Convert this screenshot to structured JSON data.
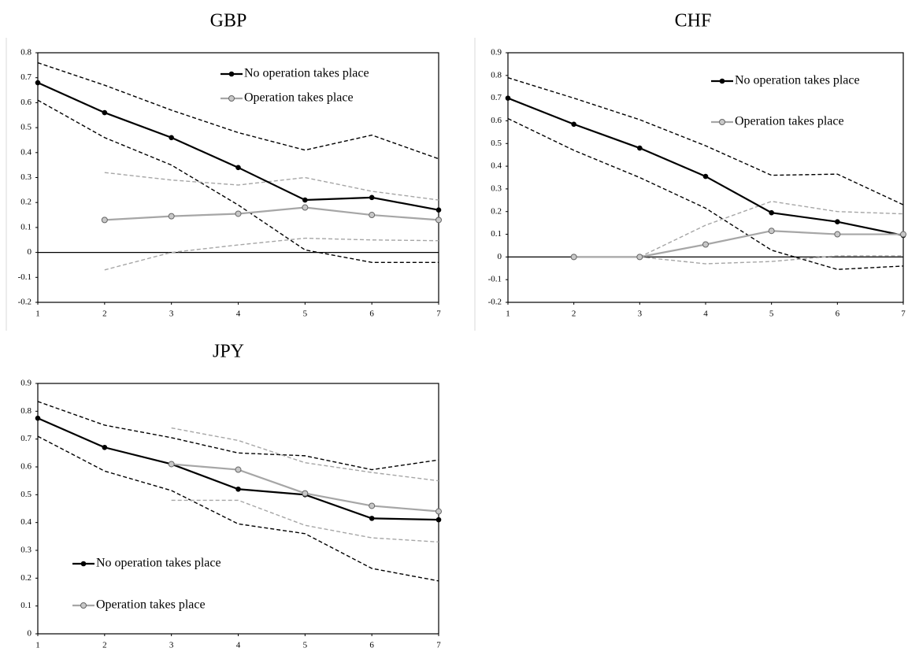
{
  "chart_data": [
    {
      "type": "line",
      "title": "GBP",
      "x": [
        1,
        2,
        3,
        4,
        5,
        6,
        7
      ],
      "xlim": [
        1,
        7
      ],
      "xticks": [
        1,
        2,
        3,
        4,
        5,
        6,
        7
      ],
      "ylim": [
        -0.2,
        0.8
      ],
      "yticks": [
        -0.2,
        -0.1,
        0,
        0.1,
        0.2,
        0.3,
        0.4,
        0.5,
        0.6,
        0.7,
        0.8
      ],
      "zero_line": true,
      "legend": "upper right",
      "series": [
        {
          "name": "No operation takes place",
          "color": "#000000",
          "values": [
            0.68,
            0.56,
            0.46,
            0.34,
            0.21,
            0.22,
            0.17
          ],
          "upper": [
            0.76,
            0.67,
            0.57,
            0.48,
            0.41,
            0.47,
            0.375
          ],
          "lower": [
            0.61,
            0.46,
            0.35,
            0.19,
            0.01,
            -0.04,
            -0.04
          ]
        },
        {
          "name": "Operation takes place",
          "color": "#a6a6a6",
          "values": [
            null,
            0.13,
            0.145,
            0.155,
            0.18,
            0.15,
            0.13
          ],
          "upper": [
            null,
            0.32,
            0.29,
            0.27,
            0.3,
            0.245,
            0.21
          ],
          "lower": [
            null,
            -0.07,
            0.0,
            0.03,
            0.057,
            0.05,
            0.047
          ]
        }
      ]
    },
    {
      "type": "line",
      "title": "CHF",
      "x": [
        1,
        2,
        3,
        4,
        5,
        6,
        7
      ],
      "xlim": [
        1,
        7
      ],
      "xticks": [
        1,
        2,
        3,
        4,
        5,
        6,
        7
      ],
      "ylim": [
        -0.2,
        0.9
      ],
      "yticks": [
        -0.2,
        -0.1,
        0,
        0.1,
        0.2,
        0.3,
        0.4,
        0.5,
        0.6,
        0.7,
        0.8,
        0.9
      ],
      "zero_line": true,
      "legend": "upper right",
      "series": [
        {
          "name": "No operation takes place",
          "color": "#000000",
          "values": [
            0.7,
            0.585,
            0.48,
            0.355,
            0.195,
            0.155,
            0.095
          ],
          "upper": [
            0.79,
            0.7,
            0.605,
            0.49,
            0.36,
            0.365,
            0.23
          ],
          "lower": [
            0.61,
            0.47,
            0.35,
            0.215,
            0.03,
            -0.055,
            -0.04
          ]
        },
        {
          "name": "Operation takes place",
          "color": "#a6a6a6",
          "values": [
            null,
            0.0,
            0.0,
            0.055,
            0.115,
            0.1,
            0.1
          ],
          "upper": [
            null,
            null,
            0.0,
            0.14,
            0.245,
            0.2,
            0.19
          ],
          "lower": [
            null,
            null,
            0.0,
            -0.03,
            -0.02,
            0.005,
            0.005
          ]
        }
      ]
    },
    {
      "type": "line",
      "title": "JPY",
      "x": [
        1,
        2,
        3,
        4,
        5,
        6,
        7
      ],
      "xlim": [
        1,
        7
      ],
      "xticks": [
        1,
        2,
        3,
        4,
        5,
        6,
        7
      ],
      "ylim": [
        0,
        0.9
      ],
      "yticks": [
        0,
        0.1,
        0.2,
        0.3,
        0.4,
        0.5,
        0.6,
        0.7,
        0.8,
        0.9
      ],
      "zero_line": false,
      "legend": "lower left",
      "series": [
        {
          "name": "No operation takes place",
          "color": "#000000",
          "values": [
            0.775,
            0.67,
            0.61,
            0.52,
            0.5,
            0.415,
            0.41
          ],
          "upper": [
            0.835,
            0.75,
            0.705,
            0.65,
            0.64,
            0.59,
            0.625
          ],
          "lower": [
            0.71,
            0.585,
            0.515,
            0.395,
            0.36,
            0.235,
            0.19
          ]
        },
        {
          "name": "Operation takes place",
          "color": "#a6a6a6",
          "values": [
            null,
            null,
            0.61,
            0.59,
            0.505,
            0.46,
            0.44
          ],
          "upper": [
            null,
            null,
            0.74,
            0.695,
            0.615,
            0.58,
            0.55
          ],
          "lower": [
            null,
            null,
            0.48,
            0.48,
            0.39,
            0.345,
            0.33
          ]
        }
      ]
    }
  ]
}
